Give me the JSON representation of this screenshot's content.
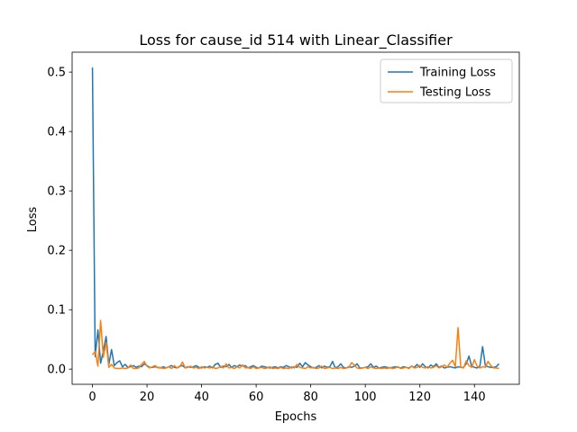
{
  "chart_data": {
    "type": "line",
    "title": "Loss for cause_id 514 with Linear_Classifier",
    "xlabel": "Epochs",
    "ylabel": "Loss",
    "xlim": [
      -7.45,
      156.45
    ],
    "ylim": [
      -0.0255,
      0.5335
    ],
    "xticks": [
      0,
      20,
      40,
      60,
      80,
      100,
      120,
      140
    ],
    "yticks": [
      0.0,
      0.1,
      0.2,
      0.3,
      0.4,
      0.5
    ],
    "ytick_labels": [
      "0.0",
      "0.1",
      "0.2",
      "0.3",
      "0.4",
      "0.5"
    ],
    "legend_position": "top-right",
    "grid": false,
    "series": [
      {
        "name": "Training Loss",
        "color": "#1f77b4",
        "values": [
          0.508,
          0.021,
          0.066,
          0.01,
          0.031,
          0.055,
          0.008,
          0.033,
          0.006,
          0.011,
          0.014,
          0.004,
          0.008,
          0.003,
          0.004,
          0.006,
          0.003,
          0.005,
          0.004,
          0.009,
          0.006,
          0.003,
          0.003,
          0.004,
          0.003,
          0.002,
          0.004,
          0.002,
          0.004,
          0.006,
          0.003,
          0.002,
          0.005,
          0.006,
          0.002,
          0.004,
          0.003,
          0.004,
          0.006,
          0.003,
          0.002,
          0.004,
          0.003,
          0.005,
          0.002,
          0.008,
          0.01,
          0.003,
          0.005,
          0.004,
          0.008,
          0.003,
          0.006,
          0.004,
          0.007,
          0.005,
          0.006,
          0.002,
          0.004,
          0.006,
          0.003,
          0.002,
          0.005,
          0.004,
          0.003,
          0.002,
          0.003,
          0.004,
          0.002,
          0.004,
          0.003,
          0.006,
          0.004,
          0.002,
          0.004,
          0.003,
          0.01,
          0.004,
          0.011,
          0.007,
          0.004,
          0.002,
          0.003,
          0.006,
          0.002,
          0.005,
          0.003,
          0.004,
          0.013,
          0.002,
          0.004,
          0.009,
          0.003,
          0.002,
          0.004,
          0.003,
          0.005,
          0.009,
          0.002,
          0.002,
          0.003,
          0.004,
          0.009,
          0.003,
          0.005,
          0.002,
          0.003,
          0.004,
          0.003,
          0.002,
          0.003,
          0.004,
          0.003,
          0.002,
          0.004,
          0.003,
          0.002,
          0.005,
          0.003,
          0.008,
          0.003,
          0.009,
          0.004,
          0.002,
          0.007,
          0.004,
          0.009,
          0.003,
          0.005,
          0.002,
          0.003,
          0.004,
          0.003,
          0.002,
          0.004,
          0.003,
          0.003,
          0.009,
          0.022,
          0.005,
          0.003,
          0.002,
          0.005,
          0.038,
          0.006,
          0.004,
          0.003,
          0.003,
          0.004,
          0.009
        ]
      },
      {
        "name": "Testing Loss",
        "color": "#ff7f0e",
        "values": [
          0.024,
          0.03,
          0.005,
          0.082,
          0.02,
          0.045,
          0.003,
          0.008,
          0.002,
          0.001,
          0.001,
          0.002,
          0.001,
          0.002,
          0.007,
          0.001,
          0.001,
          0.002,
          0.008,
          0.013,
          0.005,
          0.002,
          0.004,
          0.006,
          0.002,
          0.003,
          0.001,
          0.002,
          0.004,
          0.001,
          0.006,
          0.002,
          0.004,
          0.012,
          0.002,
          0.003,
          0.005,
          0.002,
          0.003,
          0.001,
          0.004,
          0.002,
          0.003,
          0.002,
          0.004,
          0.001,
          0.002,
          0.005,
          0.002,
          0.009,
          0.002,
          0.003,
          0.001,
          0.004,
          0.002,
          0.007,
          0.002,
          0.003,
          0.001,
          0.004,
          0.001,
          0.002,
          0.003,
          0.001,
          0.002,
          0.004,
          0.001,
          0.002,
          0.001,
          0.003,
          0.001,
          0.002,
          0.001,
          0.004,
          0.002,
          0.008,
          0.003,
          0.002,
          0.001,
          0.004,
          0.002,
          0.003,
          0.001,
          0.002,
          0.005,
          0.001,
          0.002,
          0.003,
          0.001,
          0.002,
          0.001,
          0.003,
          0.001,
          0.002,
          0.003,
          0.011,
          0.007,
          0.002,
          0.001,
          0.002,
          0.003,
          0.001,
          0.004,
          0.002,
          0.001,
          0.002,
          0.001,
          0.002,
          0.001,
          0.003,
          0.001,
          0.002,
          0.004,
          0.001,
          0.002,
          0.003,
          0.001,
          0.005,
          0.002,
          0.003,
          0.006,
          0.003,
          0.002,
          0.004,
          0.002,
          0.003,
          0.006,
          0.002,
          0.004,
          0.007,
          0.003,
          0.01,
          0.015,
          0.004,
          0.07,
          0.003,
          0.002,
          0.014,
          0.006,
          0.003,
          0.016,
          0.005,
          0.002,
          0.004,
          0.003,
          0.013,
          0.006,
          0.002,
          0.002,
          0.001
        ]
      }
    ]
  }
}
